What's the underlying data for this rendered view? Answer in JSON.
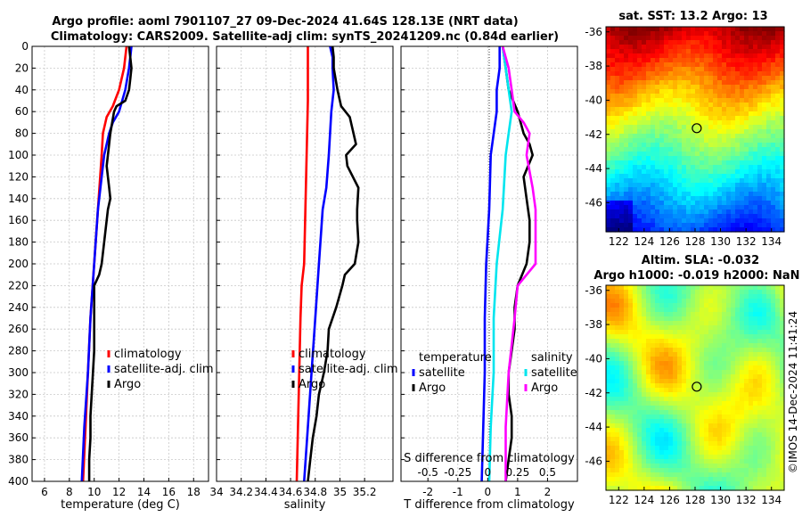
{
  "title_line1": "Argo profile: aoml 7901107_27 09-Dec-2024 41.64S 128.13E (NRT data)",
  "title_line2": "Climatology: CARS2009. Satellite-adj clim: synTS_20241209.nc (0.84d earlier)",
  "credit": "©IMOS 14-Dec-2024 11:41:24",
  "colors": {
    "climatology": "#ff0000",
    "satellite": "#0000ff",
    "argo": "#000000",
    "salinity": "#ff00ff",
    "salinity_satellite": "#00e5ee"
  },
  "chart_data": [
    {
      "id": "temperature",
      "type": "line",
      "xlabel": "temperature (deg C)",
      "ylabel": "depth",
      "xlim": [
        5,
        19.2
      ],
      "ylim": [
        0,
        400
      ],
      "x_ticks": [
        "6",
        "8",
        "10",
        "12",
        "14",
        "16",
        "18"
      ],
      "x_tick_values": [
        6,
        8,
        10,
        12,
        14,
        16,
        18
      ],
      "y_ticks": [
        "0",
        "20",
        "40",
        "60",
        "80",
        "100",
        "120",
        "140",
        "160",
        "180",
        "200",
        "220",
        "240",
        "260",
        "280",
        "300",
        "320",
        "340",
        "360",
        "380",
        "400"
      ],
      "legend": [
        "climatology",
        "satellite-adj. clim",
        "Argo"
      ],
      "series": [
        {
          "name": "climatology",
          "color_key": "climatology",
          "depth": [
            0,
            20,
            40,
            55,
            65,
            75,
            80,
            100,
            150,
            200,
            250,
            300,
            350,
            400
          ],
          "values": [
            12.6,
            12.4,
            12.0,
            11.5,
            11.0,
            10.8,
            10.7,
            10.6,
            10.3,
            10.0,
            9.7,
            9.5,
            9.3,
            9.1
          ]
        },
        {
          "name": "satellite-adj. clim",
          "color_key": "satellite",
          "depth": [
            0,
            10,
            20,
            40,
            60,
            70,
            80,
            90,
            100,
            120,
            150,
            200,
            250,
            300,
            350,
            400
          ],
          "values": [
            13.0,
            12.9,
            12.8,
            12.5,
            12.0,
            11.5,
            11.2,
            11.0,
            10.8,
            10.6,
            10.3,
            10.0,
            9.7,
            9.5,
            9.2,
            9.0
          ]
        },
        {
          "name": "Argo",
          "color_key": "argo",
          "depth": [
            0,
            10,
            20,
            30,
            40,
            50,
            55,
            60,
            80,
            100,
            110,
            130,
            140,
            150,
            160,
            180,
            200,
            210,
            220,
            240,
            260,
            280,
            300,
            320,
            340,
            360,
            380,
            400
          ],
          "values": [
            12.8,
            12.9,
            13.0,
            12.9,
            12.8,
            12.5,
            11.8,
            11.6,
            11.3,
            11.1,
            11.0,
            11.2,
            11.3,
            11.1,
            11.0,
            10.8,
            10.6,
            10.4,
            10.0,
            10.0,
            10.0,
            10.0,
            9.9,
            9.8,
            9.7,
            9.7,
            9.6,
            9.6
          ]
        }
      ]
    },
    {
      "id": "salinity",
      "type": "line",
      "xlabel": "salinity",
      "ylabel": "depth",
      "xlim": [
        34,
        35.43
      ],
      "ylim": [
        0,
        400
      ],
      "x_ticks": [
        "34",
        "34.2",
        "34.4",
        "34.6",
        "34.8",
        "35",
        "35.2"
      ],
      "x_tick_values": [
        34,
        34.2,
        34.4,
        34.6,
        34.8,
        35,
        35.2
      ],
      "legend": [
        "climatology",
        "satellite-adj. clim",
        "Argo"
      ],
      "series": [
        {
          "name": "climatology",
          "color_key": "climatology",
          "depth": [
            0,
            50,
            100,
            150,
            200,
            220,
            250,
            300,
            350,
            400
          ],
          "values": [
            34.74,
            34.74,
            34.73,
            34.72,
            34.71,
            34.69,
            34.68,
            34.67,
            34.66,
            34.65
          ]
        },
        {
          "name": "satellite-adj. clim",
          "color_key": "satellite",
          "depth": [
            0,
            10,
            20,
            40,
            60,
            80,
            100,
            130,
            150,
            200,
            250,
            300,
            350,
            400
          ],
          "values": [
            34.92,
            34.94,
            34.94,
            34.95,
            34.93,
            34.92,
            34.91,
            34.89,
            34.86,
            34.83,
            34.8,
            34.77,
            34.74,
            34.71
          ]
        },
        {
          "name": "Argo",
          "color_key": "argo",
          "depth": [
            0,
            10,
            20,
            40,
            55,
            65,
            75,
            80,
            90,
            100,
            110,
            130,
            150,
            160,
            180,
            200,
            210,
            220,
            240,
            260,
            280,
            300,
            320,
            340,
            360,
            380,
            400
          ],
          "values": [
            34.94,
            34.95,
            34.95,
            34.98,
            35.01,
            35.08,
            35.1,
            35.11,
            35.13,
            35.05,
            35.06,
            35.15,
            35.14,
            35.14,
            35.15,
            35.12,
            35.04,
            35.02,
            34.97,
            34.91,
            34.9,
            34.87,
            34.83,
            34.81,
            34.78,
            34.76,
            34.74
          ]
        }
      ]
    },
    {
      "id": "difference",
      "type": "line",
      "xlabel": "T difference from climatology",
      "xlabel_top": "S difference from climatology",
      "xlim": [
        -2.9,
        3.0
      ],
      "ylim": [
        0,
        400
      ],
      "x_ticks": [
        "-2",
        "-1",
        "0",
        "1",
        "2"
      ],
      "x_tick_values": [
        -2,
        -1,
        0,
        1,
        2
      ],
      "s_ticks": [
        "-0.5",
        "-0.25",
        "0",
        "0.25",
        "0.5"
      ],
      "s_tick_values": [
        -2,
        -1,
        0,
        1,
        2
      ],
      "legend_temperature_title": "temperature",
      "legend_salinity_title": "salinity",
      "legend_temperature": [
        "satellite",
        "Argo"
      ],
      "legend_salinity": [
        "satellite",
        "Argo"
      ],
      "series": [
        {
          "name": "T satellite",
          "color_key": "satellite",
          "depth": [
            0,
            20,
            40,
            60,
            100,
            150,
            200,
            250,
            300,
            350,
            400
          ],
          "values": [
            0.4,
            0.4,
            0.3,
            0.3,
            0.1,
            0.05,
            -0.05,
            -0.1,
            -0.1,
            -0.15,
            -0.2
          ]
        },
        {
          "name": "T Argo",
          "color_key": "argo",
          "depth": [
            0,
            20,
            40,
            60,
            80,
            90,
            100,
            120,
            140,
            160,
            180,
            200,
            220,
            240,
            260,
            280,
            300,
            320,
            340,
            360,
            380,
            400
          ],
          "values": [
            0.5,
            0.6,
            0.7,
            1.0,
            1.2,
            1.4,
            1.5,
            1.2,
            1.3,
            1.4,
            1.4,
            1.3,
            1.0,
            0.9,
            0.9,
            0.8,
            0.7,
            0.7,
            0.8,
            0.8,
            0.7,
            0.6
          ]
        },
        {
          "name": "S satellite",
          "color_key": "salinity_satellite",
          "depth": [
            0,
            20,
            40,
            60,
            80,
            100,
            150,
            200,
            250,
            300,
            350,
            400
          ],
          "values": [
            0.5,
            0.6,
            0.7,
            0.8,
            0.7,
            0.6,
            0.5,
            0.3,
            0.2,
            0.2,
            0.1,
            0.05
          ]
        },
        {
          "name": "S Argo",
          "color_key": "salinity",
          "depth": [
            0,
            20,
            40,
            60,
            70,
            80,
            100,
            130,
            150,
            200,
            220,
            250,
            300,
            350,
            400
          ],
          "values": [
            0.5,
            0.7,
            0.8,
            0.9,
            1.2,
            1.4,
            1.3,
            1.5,
            1.6,
            1.6,
            1.0,
            0.9,
            0.7,
            0.6,
            0.6
          ]
        }
      ]
    },
    {
      "id": "sst_map",
      "type": "heatmap",
      "title": "sat. SST: 13.2 Argo: 13",
      "x_ticks": [
        "122",
        "124",
        "126",
        "128",
        "130",
        "132",
        "134"
      ],
      "x_tick_values": [
        122,
        124,
        126,
        128,
        130,
        132,
        134
      ],
      "y_ticks": [
        "-36",
        "-38",
        "-40",
        "-42",
        "-44",
        "-46"
      ],
      "y_tick_values": [
        -36,
        -38,
        -40,
        -42,
        -44,
        -46
      ],
      "xlim": [
        121,
        135
      ],
      "ylim": [
        -47.7,
        -35.7
      ],
      "marker": [
        128.13,
        -41.64
      ]
    },
    {
      "id": "sla_map",
      "type": "heatmap",
      "title_line1": "Altim. SLA: -0.032",
      "title_line2": "Argo h1000: -0.019 h2000: NaN",
      "x_ticks": [
        "122",
        "124",
        "126",
        "128",
        "130",
        "132",
        "134"
      ],
      "x_tick_values": [
        122,
        124,
        126,
        128,
        130,
        132,
        134
      ],
      "y_ticks": [
        "-36",
        "-38",
        "-40",
        "-42",
        "-44",
        "-46"
      ],
      "y_tick_values": [
        -36,
        -38,
        -40,
        -42,
        -44,
        -46
      ],
      "xlim": [
        121,
        135
      ],
      "ylim": [
        -47.7,
        -35.7
      ],
      "marker": [
        128.13,
        -41.64
      ]
    }
  ]
}
